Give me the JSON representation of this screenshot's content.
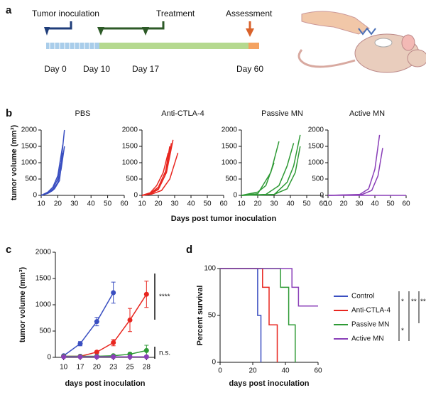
{
  "panel_labels": [
    "a",
    "b",
    "c",
    "d"
  ],
  "timeline": {
    "events": [
      "Tumor inoculation",
      "Treatment",
      "Assessment"
    ],
    "days": [
      "Day 0",
      "Day 10",
      "Day 17",
      "Day 60"
    ]
  },
  "panel_b": {
    "ylabel": "tumor volume (mm³)",
    "xlabel": "Days post tumor inoculation"
  },
  "chart_data": [
    {
      "type": "line",
      "title": "PBS",
      "xlim": [
        10,
        60
      ],
      "xticks": [
        10,
        20,
        30,
        40,
        50,
        60
      ],
      "ylim": [
        0,
        2000
      ],
      "yticks": [
        0,
        500,
        1000,
        1500,
        2000
      ],
      "series": [
        {
          "color": "#3a4fc1",
          "x": [
            10,
            14,
            17,
            20,
            22,
            24
          ],
          "values": [
            0,
            80,
            200,
            500,
            1000,
            2000
          ]
        },
        {
          "color": "#3a4fc1",
          "x": [
            10,
            14,
            17,
            20,
            23
          ],
          "values": [
            0,
            100,
            250,
            600,
            1550
          ]
        },
        {
          "color": "#3a4fc1",
          "x": [
            10,
            14,
            17,
            20,
            22,
            24
          ],
          "values": [
            0,
            60,
            150,
            400,
            800,
            1500
          ]
        },
        {
          "color": "#3a4fc1",
          "x": [
            10,
            15,
            18,
            21,
            23
          ],
          "values": [
            0,
            90,
            200,
            450,
            1300
          ]
        }
      ]
    },
    {
      "type": "line",
      "title": "Anti-CTLA-4",
      "xlim": [
        10,
        60
      ],
      "xticks": [
        10,
        20,
        30,
        40,
        50,
        60
      ],
      "ylim": [
        0,
        2000
      ],
      "yticks": [
        0,
        500,
        1000,
        1500,
        2000
      ],
      "series": [
        {
          "color": "#e8261f",
          "x": [
            10,
            15,
            20,
            24,
            27
          ],
          "values": [
            0,
            50,
            200,
            600,
            1500
          ]
        },
        {
          "color": "#e8261f",
          "x": [
            10,
            15,
            20,
            25,
            29
          ],
          "values": [
            0,
            40,
            180,
            700,
            1700
          ]
        },
        {
          "color": "#e8261f",
          "x": [
            10,
            16,
            22,
            27,
            32
          ],
          "values": [
            0,
            40,
            150,
            500,
            1300
          ]
        },
        {
          "color": "#e8261f",
          "x": [
            10,
            15,
            20,
            25,
            28
          ],
          "values": [
            0,
            60,
            250,
            800,
            1600
          ]
        },
        {
          "color": "#e8261f",
          "x": [
            10,
            15,
            19,
            23,
            26
          ],
          "values": [
            0,
            80,
            300,
            700,
            1300
          ]
        }
      ]
    },
    {
      "type": "line",
      "title": "Passive MN",
      "xlim": [
        10,
        60
      ],
      "xticks": [
        10,
        20,
        30,
        40,
        50,
        60
      ],
      "ylim": [
        0,
        2000
      ],
      "yticks": [
        0,
        500,
        1000,
        1500,
        2000
      ],
      "series": [
        {
          "color": "#2e9a35",
          "x": [
            10,
            20,
            28,
            33
          ],
          "values": [
            0,
            50,
            700,
            1650
          ]
        },
        {
          "color": "#2e9a35",
          "x": [
            10,
            25,
            33,
            38,
            42
          ],
          "values": [
            0,
            30,
            300,
            900,
            1600
          ]
        },
        {
          "color": "#2e9a35",
          "x": [
            10,
            30,
            38,
            42,
            46
          ],
          "values": [
            0,
            20,
            400,
            900,
            1850
          ]
        },
        {
          "color": "#2e9a35",
          "x": [
            10,
            30,
            38,
            43,
            46
          ],
          "values": [
            0,
            30,
            200,
            700,
            1500
          ]
        },
        {
          "color": "#2e9a35",
          "x": [
            10,
            20,
            25,
            30
          ],
          "values": [
            0,
            100,
            300,
            1000
          ]
        }
      ]
    },
    {
      "type": "line",
      "title": "Active MN",
      "xlim": [
        10,
        60
      ],
      "xticks": [
        10,
        20,
        30,
        40,
        50,
        60
      ],
      "ylim": [
        0,
        2000
      ],
      "yticks": [
        0,
        500,
        1000,
        1500,
        2000
      ],
      "series": [
        {
          "color": "#8a3fb8",
          "x": [
            10,
            30,
            36,
            40,
            43
          ],
          "values": [
            0,
            20,
            200,
            800,
            1850
          ]
        },
        {
          "color": "#8a3fb8",
          "x": [
            10,
            32,
            38,
            42,
            45
          ],
          "values": [
            0,
            30,
            150,
            600,
            1450
          ]
        },
        {
          "color": "#8a3fb8",
          "x": [
            10,
            60
          ],
          "values": [
            0,
            0
          ]
        }
      ]
    },
    {
      "type": "errorline",
      "xlabel": "days post inoculation",
      "ylabel": "tumor volume (mm³)",
      "categories": [
        10,
        17,
        20,
        23,
        25,
        28
      ],
      "ylim": [
        0,
        2000
      ],
      "yticks": [
        0,
        500,
        1000,
        1500,
        2000
      ],
      "annotations": [
        "****",
        "n.s."
      ],
      "series": [
        {
          "name": "Control",
          "color": "#3a4fc1",
          "values": [
            30,
            260,
            680,
            1230,
            null,
            null
          ],
          "errors": [
            10,
            40,
            80,
            200,
            null,
            null
          ]
        },
        {
          "name": "Anti-CTLA-4",
          "color": "#e8261f",
          "values": [
            20,
            20,
            100,
            280,
            710,
            1200
          ],
          "errors": [
            5,
            10,
            20,
            60,
            220,
            250
          ]
        },
        {
          "name": "Passive MN",
          "color": "#2e9a35",
          "values": [
            20,
            20,
            20,
            30,
            60,
            130
          ],
          "errors": [
            5,
            5,
            5,
            10,
            30,
            100
          ]
        },
        {
          "name": "Active MN",
          "color": "#8a3fb8",
          "values": [
            10,
            10,
            10,
            10,
            10,
            10
          ],
          "errors": [
            5,
            5,
            5,
            5,
            5,
            5
          ]
        }
      ]
    },
    {
      "type": "step",
      "xlabel": "days post inoculation",
      "ylabel": "Percent survival",
      "xlim": [
        0,
        60
      ],
      "xticks": [
        0,
        20,
        40,
        60
      ],
      "ylim": [
        0,
        100
      ],
      "yticks": [
        0,
        50,
        100
      ],
      "annotations": [
        "*",
        "**",
        "**",
        "*"
      ],
      "series": [
        {
          "name": "Control",
          "color": "#3a4fc1",
          "x": [
            0,
            23,
            25
          ],
          "values": [
            100,
            50,
            0
          ]
        },
        {
          "name": "Anti-CTLA-4",
          "color": "#e8261f",
          "x": [
            0,
            26,
            30,
            35
          ],
          "values": [
            100,
            80,
            40,
            0
          ]
        },
        {
          "name": "Passive MN",
          "color": "#2e9a35",
          "x": [
            0,
            37,
            42,
            46
          ],
          "values": [
            100,
            80,
            40,
            0
          ]
        },
        {
          "name": "Active MN",
          "color": "#8a3fb8",
          "x": [
            0,
            44,
            48,
            60
          ],
          "values": [
            100,
            80,
            60,
            60
          ]
        }
      ]
    }
  ]
}
